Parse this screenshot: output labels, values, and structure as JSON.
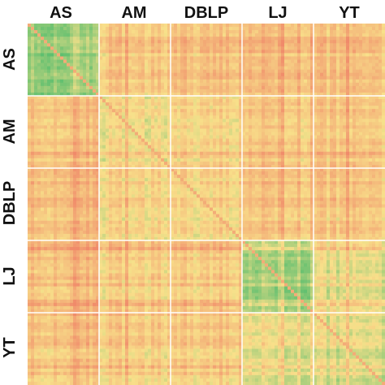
{
  "chart_data": {
    "type": "heatmap",
    "title": "",
    "xlabel": "",
    "ylabel": "",
    "column_labels": [
      "AS",
      "AM",
      "DBLP",
      "LJ",
      "YT"
    ],
    "row_labels": [
      "AS",
      "AM",
      "DBLP",
      "LJ",
      "YT"
    ],
    "colors": {
      "high": "#5fbf6f",
      "mid": "#f8e08a",
      "low": "#f08a6a",
      "background": "#ffffff",
      "separator": "#ffffff"
    },
    "block_similarity": [
      [
        0.8,
        0.35,
        0.3,
        0.28,
        0.33
      ],
      [
        0.35,
        0.5,
        0.45,
        0.38,
        0.4
      ],
      [
        0.3,
        0.45,
        0.45,
        0.35,
        0.38
      ],
      [
        0.28,
        0.38,
        0.35,
        0.75,
        0.55
      ],
      [
        0.33,
        0.4,
        0.38,
        0.55,
        0.6
      ]
    ],
    "diagonal_highlight": true,
    "grid": false,
    "legend": "none"
  }
}
